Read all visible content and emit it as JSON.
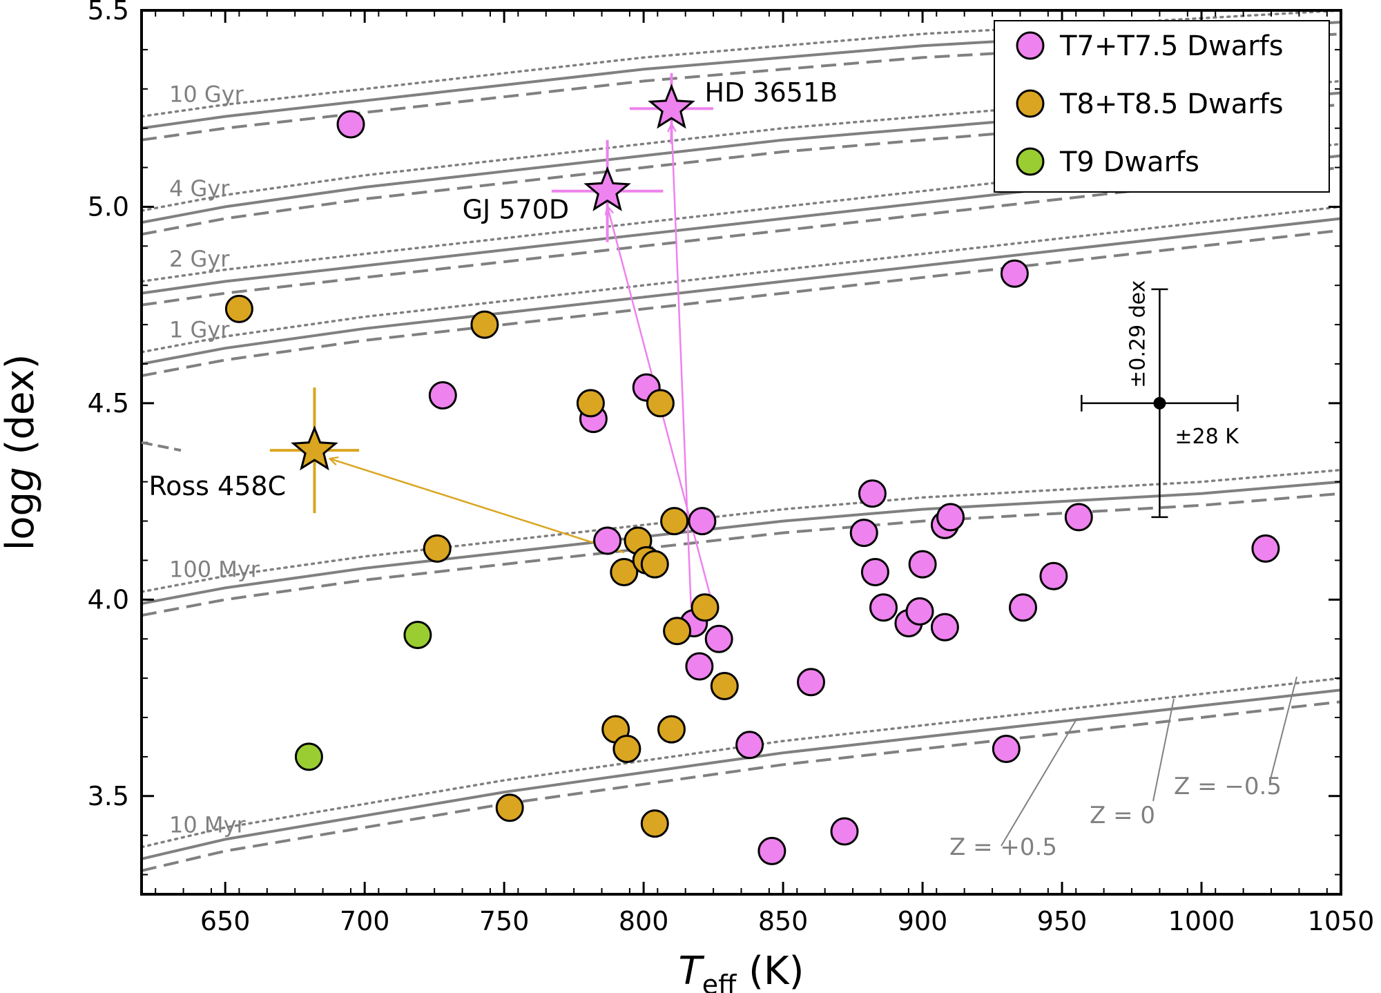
{
  "chart_data": {
    "type": "scatter",
    "xlabel_main": "T",
    "xlabel_sub": "eff",
    "xlabel_unit": " (K)",
    "ylabel_pre": "log",
    "ylabel_italic": "g",
    "ylabel_unit": " (dex)",
    "xlim": [
      620,
      1050
    ],
    "ylim": [
      3.25,
      5.5
    ],
    "xticks": [
      650,
      700,
      750,
      800,
      850,
      900,
      950,
      1000,
      1050
    ],
    "yticks": [
      3.5,
      4.0,
      4.5,
      5.0,
      5.5
    ],
    "legend_position": "top-right",
    "colors": {
      "t7": "#ee82ee",
      "t8": "#daa520",
      "t9": "#9acd32",
      "model": "#808080"
    },
    "legend": [
      {
        "label": "T7+T7.5 Dwarfs",
        "color": "#ee82ee"
      },
      {
        "label": "T8+T8.5 Dwarfs",
        "color": "#daa520"
      },
      {
        "label": "T9 Dwarfs",
        "color": "#9acd32"
      }
    ],
    "series": [
      {
        "name": "T7+T7.5 Dwarfs",
        "color": "#ee82ee",
        "points": [
          [
            695,
            5.21
          ],
          [
            728,
            4.52
          ],
          [
            782,
            4.46
          ],
          [
            787,
            4.15
          ],
          [
            801,
            4.54
          ],
          [
            818,
            3.94
          ],
          [
            820,
            3.83
          ],
          [
            821,
            4.2
          ],
          [
            827,
            3.9
          ],
          [
            838,
            3.63
          ],
          [
            846,
            3.36
          ],
          [
            860,
            3.79
          ],
          [
            872,
            3.41
          ],
          [
            879,
            4.17
          ],
          [
            882,
            4.27
          ],
          [
            883,
            4.07
          ],
          [
            886,
            3.98
          ],
          [
            895,
            3.94
          ],
          [
            899,
            3.97
          ],
          [
            900,
            4.09
          ],
          [
            908,
            4.19
          ],
          [
            908,
            3.93
          ],
          [
            910,
            4.21
          ],
          [
            930,
            3.62
          ],
          [
            933,
            4.83
          ],
          [
            936,
            3.98
          ],
          [
            947,
            4.06
          ],
          [
            956,
            4.21
          ],
          [
            1023,
            4.13
          ]
        ]
      },
      {
        "name": "T8+T8.5 Dwarfs",
        "color": "#daa520",
        "points": [
          [
            655,
            4.74
          ],
          [
            726,
            4.13
          ],
          [
            743,
            4.7
          ],
          [
            752,
            3.47
          ],
          [
            781,
            4.5
          ],
          [
            790,
            3.67
          ],
          [
            793,
            4.07
          ],
          [
            794,
            3.62
          ],
          [
            798,
            4.15
          ],
          [
            801,
            4.1
          ],
          [
            804,
            4.09
          ],
          [
            804,
            3.43
          ],
          [
            806,
            4.5
          ],
          [
            810,
            3.67
          ],
          [
            811,
            4.2
          ],
          [
            812,
            3.92
          ],
          [
            822,
            3.98
          ],
          [
            829,
            3.78
          ]
        ]
      },
      {
        "name": "T9 Dwarfs",
        "color": "#9acd32",
        "points": [
          [
            680,
            3.6
          ],
          [
            719,
            3.91
          ]
        ]
      }
    ],
    "benchmarks": [
      {
        "label": "HD 3651B",
        "x": 810,
        "y": 5.25,
        "xerr": 15,
        "yerr": 0.09,
        "color": "#ee82ee",
        "from": [
          817,
          3.98
        ]
      },
      {
        "label": "GJ 570D",
        "x": 787,
        "y": 5.04,
        "xerr": 20,
        "yerr": 0.13,
        "color": "#ee82ee",
        "from": [
          825,
          3.98
        ]
      },
      {
        "label": "Ross 458C",
        "x": 682,
        "y": 4.38,
        "xerr": 16,
        "yerr": 0.16,
        "color": "#daa520",
        "from": [
          793,
          4.12
        ]
      }
    ],
    "errorbar_example": {
      "x": 985,
      "y": 4.5,
      "xerr": 28,
      "yerr": 0.29,
      "xerr_label": "±28 K",
      "yerr_label": "±0.29 dex"
    },
    "isochrones": [
      {
        "label": "10 Gyr",
        "label_x": 640,
        "x": [
          620,
          650,
          700,
          750,
          800,
          850,
          900,
          950,
          1000,
          1050
        ],
        "y": [
          5.2,
          5.23,
          5.27,
          5.31,
          5.35,
          5.38,
          5.41,
          5.43,
          5.45,
          5.47
        ]
      },
      {
        "label": "4 Gyr",
        "label_x": 640,
        "x": [
          620,
          650,
          700,
          750,
          800,
          850,
          900,
          950,
          1000,
          1050
        ],
        "y": [
          4.96,
          5.0,
          5.05,
          5.09,
          5.13,
          5.17,
          5.2,
          5.23,
          5.26,
          5.29
        ]
      },
      {
        "label": "2 Gyr",
        "label_x": 640,
        "x": [
          620,
          650,
          700,
          750,
          800,
          850,
          900,
          950,
          1000,
          1050
        ],
        "y": [
          4.78,
          4.81,
          4.85,
          4.89,
          4.93,
          4.97,
          5.01,
          5.05,
          5.09,
          5.13
        ]
      },
      {
        "label": "1 Gyr",
        "label_x": 640,
        "x": [
          620,
          650,
          700,
          750,
          800,
          850,
          900,
          950,
          1000,
          1050
        ],
        "y": [
          4.6,
          4.64,
          4.69,
          4.73,
          4.77,
          4.81,
          4.85,
          4.89,
          4.93,
          4.97
        ]
      },
      {
        "label": "100 Myr",
        "label_x": 640,
        "x": [
          620,
          650,
          700,
          750,
          800,
          850,
          900,
          950,
          1000,
          1050
        ],
        "y": [
          3.99,
          4.03,
          4.08,
          4.12,
          4.16,
          4.2,
          4.23,
          4.25,
          4.27,
          4.3
        ]
      },
      {
        "label": "10 Myr",
        "label_x": 640,
        "x": [
          620,
          650,
          700,
          750,
          800,
          850,
          900,
          950,
          1000,
          1050
        ],
        "y": [
          3.34,
          3.39,
          3.45,
          3.51,
          3.56,
          3.61,
          3.65,
          3.69,
          3.73,
          3.77
        ]
      }
    ],
    "metallicity_offsets": {
      "dotted": 0.03,
      "solid": 0.0,
      "dashed": -0.03
    },
    "metallicity_labels": [
      {
        "text": "Z = +0.5",
        "x": 1145,
        "y": 982
      },
      {
        "text": "Z = 0",
        "x": 1270,
        "y": 948
      },
      {
        "text": "Z = −0.5",
        "x": 1405,
        "y": 910
      }
    ]
  }
}
